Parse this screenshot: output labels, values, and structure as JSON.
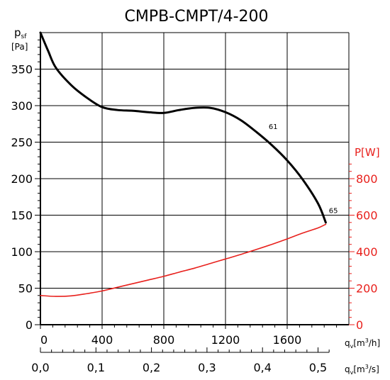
{
  "chart_data": {
    "type": "line",
    "title": "CMPB-CMPT/4-200",
    "left_axis": {
      "label_main": "p",
      "label_sub": "sf",
      "unit": "[Pa]",
      "ylim": [
        0,
        400
      ],
      "ticks": [
        0,
        50,
        100,
        150,
        200,
        250,
        300,
        350
      ]
    },
    "right_axis": {
      "label": "P[W]",
      "ylim": [
        0,
        1600
      ],
      "ticks": [
        0,
        200,
        400,
        600,
        800
      ]
    },
    "x_axis_primary": {
      "label": "qv[m3/h]",
      "label_main": "q",
      "label_sub": "v",
      "label_unit_a": "[m",
      "label_unit_sup": "3",
      "label_unit_b": "/h]",
      "xlim": [
        0,
        2000
      ],
      "ticks": [
        "0",
        "400",
        "800",
        "1200",
        "1600"
      ],
      "tick_values": [
        0,
        400,
        800,
        1200,
        1600
      ]
    },
    "x_axis_secondary": {
      "label": "qv[m3/s]",
      "label_main": "q",
      "label_sub": "v",
      "label_unit_a": "[m",
      "label_unit_sup": "3",
      "label_unit_b": "/s]",
      "ticks": [
        "0,0",
        "0,1",
        "0,2",
        "0,3",
        "0,4",
        "0,5"
      ],
      "tick_values": [
        0.0,
        0.1,
        0.2,
        0.3,
        0.4,
        0.5
      ]
    },
    "grid": true,
    "series": [
      {
        "axis": "left",
        "color": "#000000",
        "x": [
          0,
          50,
          100,
          200,
          300,
          400,
          500,
          600,
          700,
          800,
          900,
          1000,
          1100,
          1200,
          1300,
          1400,
          1500,
          1600,
          1700,
          1800,
          1850
        ],
        "y": [
          400,
          375,
          352,
          328,
          311,
          298,
          294,
          293,
          291,
          290,
          294,
          297,
          297,
          291,
          280,
          264,
          246,
          225,
          199,
          166,
          140
        ]
      },
      {
        "axis": "right",
        "color": "#e8211d",
        "x": [
          0,
          100,
          200,
          300,
          400,
          500,
          600,
          700,
          800,
          900,
          1000,
          1100,
          1200,
          1300,
          1400,
          1500,
          1600,
          1700,
          1800,
          1850
        ],
        "y": [
          160,
          155,
          158,
          170,
          185,
          205,
          225,
          245,
          265,
          288,
          310,
          335,
          360,
          385,
          412,
          440,
          470,
          502,
          530,
          550
        ]
      }
    ],
    "annotations": [
      {
        "text": "61",
        "x": 1480,
        "y": 268
      },
      {
        "text": "65",
        "x": 1870,
        "y": 153
      }
    ]
  }
}
